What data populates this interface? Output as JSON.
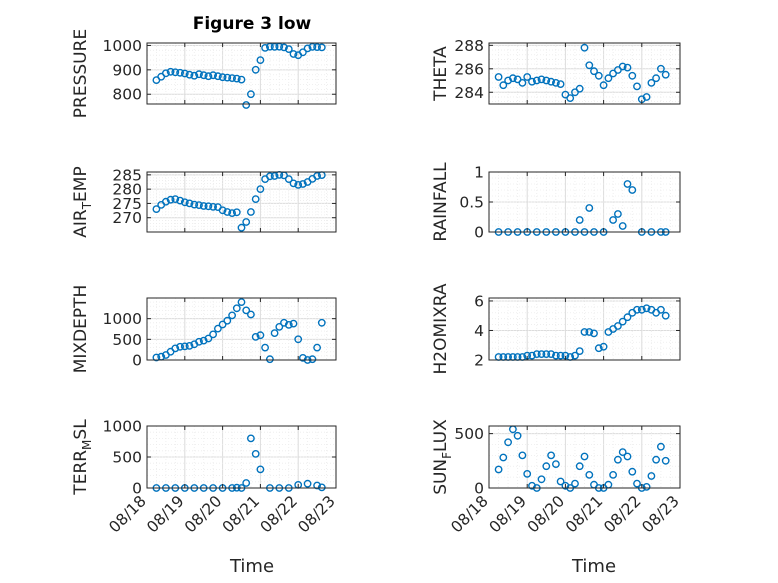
{
  "figure": {
    "title": "Figure 3 low",
    "xlabel_left": "Time",
    "xlabel_right": "Time",
    "marker_color": "#0072BD",
    "grid": true,
    "marker": "open-circle"
  },
  "chart_data": [
    {
      "type": "scatter",
      "ylabel": "PRESSURE",
      "xlim": [
        "08/18",
        "08/23"
      ],
      "ylim": [
        760,
        1010
      ],
      "yticks": [
        800,
        900,
        1000
      ],
      "x": [
        "08/18 06:00",
        "08/18 09:00",
        "08/18 12:00",
        "08/18 15:00",
        "08/18 18:00",
        "08/18 21:00",
        "08/19 00:00",
        "08/19 03:00",
        "08/19 06:00",
        "08/19 09:00",
        "08/19 12:00",
        "08/19 15:00",
        "08/19 18:00",
        "08/19 21:00",
        "08/20 00:00",
        "08/20 03:00",
        "08/20 06:00",
        "08/20 09:00",
        "08/20 12:00",
        "08/20 15:00",
        "08/20 18:00",
        "08/20 21:00",
        "08/21 00:00",
        "08/21 03:00",
        "08/21 06:00",
        "08/21 09:00",
        "08/21 12:00",
        "08/21 15:00",
        "08/21 18:00",
        "08/21 21:00",
        "08/22 00:00",
        "08/22 03:00",
        "08/22 06:00",
        "08/22 09:00",
        "08/22 12:00",
        "08/22 15:00"
      ],
      "y": [
        858,
        872,
        886,
        892,
        890,
        888,
        885,
        880,
        876,
        882,
        878,
        874,
        878,
        874,
        870,
        868,
        866,
        864,
        860,
        756,
        800,
        900,
        940,
        990,
        995,
        994,
        995,
        992,
        985,
        965,
        960,
        972,
        988,
        994,
        993,
        992
      ]
    },
    {
      "type": "scatter",
      "ylabel": "THETA",
      "xlim": [
        "08/18",
        "08/23"
      ],
      "ylim": [
        283,
        288.2
      ],
      "yticks": [
        284,
        286,
        288
      ],
      "x": [
        "08/18 06:00",
        "08/18 09:00",
        "08/18 12:00",
        "08/18 15:00",
        "08/18 18:00",
        "08/18 21:00",
        "08/19 00:00",
        "08/19 03:00",
        "08/19 06:00",
        "08/19 09:00",
        "08/19 12:00",
        "08/19 15:00",
        "08/19 18:00",
        "08/19 21:00",
        "08/20 00:00",
        "08/20 03:00",
        "08/20 06:00",
        "08/20 09:00",
        "08/20 12:00",
        "08/20 15:00",
        "08/20 18:00",
        "08/20 21:00",
        "08/21 00:00",
        "08/21 03:00",
        "08/21 06:00",
        "08/21 09:00",
        "08/21 12:00",
        "08/21 15:00",
        "08/21 18:00",
        "08/21 21:00",
        "08/22 00:00",
        "08/22 03:00",
        "08/22 06:00",
        "08/22 09:00",
        "08/22 12:00",
        "08/22 15:00"
      ],
      "y": [
        285.3,
        284.6,
        285.0,
        285.2,
        285.1,
        284.8,
        285.3,
        284.9,
        285.0,
        285.1,
        285.0,
        284.9,
        284.8,
        284.7,
        283.8,
        283.5,
        284.0,
        284.3,
        287.8,
        286.3,
        285.8,
        285.4,
        284.6,
        285.2,
        285.6,
        285.9,
        286.2,
        286.1,
        285.4,
        284.5,
        283.4,
        283.6,
        284.8,
        285.2,
        286.0,
        285.5
      ]
    },
    {
      "type": "scatter",
      "ylabel": "AIR_TEMP",
      "xlim": [
        "08/18",
        "08/23"
      ],
      "ylim": [
        265,
        286
      ],
      "yticks": [
        270,
        275,
        280,
        285
      ],
      "x": [
        "08/18 06:00",
        "08/18 09:00",
        "08/18 12:00",
        "08/18 15:00",
        "08/18 18:00",
        "08/18 21:00",
        "08/19 00:00",
        "08/19 03:00",
        "08/19 06:00",
        "08/19 09:00",
        "08/19 12:00",
        "08/19 15:00",
        "08/19 18:00",
        "08/19 21:00",
        "08/20 00:00",
        "08/20 03:00",
        "08/20 06:00",
        "08/20 09:00",
        "08/20 12:00",
        "08/20 15:00",
        "08/20 18:00",
        "08/20 21:00",
        "08/21 00:00",
        "08/21 03:00",
        "08/21 06:00",
        "08/21 09:00",
        "08/21 12:00",
        "08/21 15:00",
        "08/21 18:00",
        "08/21 21:00",
        "08/22 00:00",
        "08/22 03:00",
        "08/22 06:00",
        "08/22 09:00",
        "08/22 12:00",
        "08/22 15:00"
      ],
      "y": [
        273.0,
        274.5,
        275.6,
        276.3,
        276.5,
        276.0,
        275.4,
        275.0,
        274.6,
        274.4,
        274.1,
        274.0,
        273.8,
        273.7,
        272.6,
        272.0,
        271.6,
        271.9,
        266.5,
        268.5,
        272.0,
        276.5,
        280.0,
        283.5,
        284.5,
        284.6,
        285.0,
        284.8,
        283.5,
        282.0,
        281.5,
        281.8,
        282.5,
        283.6,
        284.6,
        284.9
      ]
    },
    {
      "type": "scatter",
      "ylabel": "RAINFALL",
      "xlim": [
        "08/18",
        "08/23"
      ],
      "ylim": [
        0,
        1
      ],
      "yticks": [
        0,
        0.5,
        1
      ],
      "x": [
        "08/18 06:00",
        "08/18 12:00",
        "08/18 18:00",
        "08/19 00:00",
        "08/19 06:00",
        "08/19 12:00",
        "08/19 18:00",
        "08/20 00:00",
        "08/20 06:00",
        "08/20 09:00",
        "08/20 12:00",
        "08/20 15:00",
        "08/20 18:00",
        "08/21 00:00",
        "08/21 06:00",
        "08/21 09:00",
        "08/21 12:00",
        "08/21 15:00",
        "08/21 18:00",
        "08/22 00:00",
        "08/22 06:00",
        "08/22 12:00",
        "08/22 15:00"
      ],
      "y": [
        0,
        0,
        0,
        0,
        0,
        0,
        0,
        0,
        0,
        0.2,
        0,
        0.4,
        0,
        0,
        0.2,
        0.3,
        0.1,
        0.8,
        0.7,
        0,
        0,
        0,
        0
      ]
    },
    {
      "type": "scatter",
      "ylabel": "MIXDEPTH",
      "xlim": [
        "08/18",
        "08/23"
      ],
      "ylim": [
        0,
        1500
      ],
      "yticks": [
        0,
        500,
        1000
      ],
      "x": [
        "08/18 06:00",
        "08/18 09:00",
        "08/18 12:00",
        "08/18 15:00",
        "08/18 18:00",
        "08/18 21:00",
        "08/19 00:00",
        "08/19 03:00",
        "08/19 06:00",
        "08/19 09:00",
        "08/19 12:00",
        "08/19 15:00",
        "08/19 18:00",
        "08/19 21:00",
        "08/20 00:00",
        "08/20 03:00",
        "08/20 06:00",
        "08/20 09:00",
        "08/20 12:00",
        "08/20 15:00",
        "08/20 18:00",
        "08/20 21:00",
        "08/21 00:00",
        "08/21 03:00",
        "08/21 06:00",
        "08/21 09:00",
        "08/21 12:00",
        "08/21 15:00",
        "08/21 18:00",
        "08/21 21:00",
        "08/22 00:00",
        "08/22 03:00",
        "08/22 06:00",
        "08/22 09:00",
        "08/22 12:00",
        "08/22 15:00"
      ],
      "y": [
        60,
        80,
        120,
        200,
        280,
        320,
        330,
        340,
        380,
        440,
        470,
        520,
        620,
        760,
        860,
        950,
        1080,
        1250,
        1400,
        1200,
        1100,
        560,
        600,
        300,
        20,
        650,
        800,
        900,
        850,
        880,
        500,
        50,
        0,
        20,
        300,
        900
      ]
    },
    {
      "type": "scatter",
      "ylabel": "H2OMIXRA",
      "xlim": [
        "08/18",
        "08/23"
      ],
      "ylim": [
        2,
        6.2
      ],
      "yticks": [
        2,
        4,
        6
      ],
      "x": [
        "08/18 06:00",
        "08/18 09:00",
        "08/18 12:00",
        "08/18 15:00",
        "08/18 18:00",
        "08/18 21:00",
        "08/19 00:00",
        "08/19 03:00",
        "08/19 06:00",
        "08/19 09:00",
        "08/19 12:00",
        "08/19 15:00",
        "08/19 18:00",
        "08/19 21:00",
        "08/20 00:00",
        "08/20 03:00",
        "08/20 06:00",
        "08/20 09:00",
        "08/20 12:00",
        "08/20 15:00",
        "08/20 18:00",
        "08/20 21:00",
        "08/21 00:00",
        "08/21 03:00",
        "08/21 06:00",
        "08/21 09:00",
        "08/21 12:00",
        "08/21 15:00",
        "08/21 18:00",
        "08/21 21:00",
        "08/22 00:00",
        "08/22 03:00",
        "08/22 06:00",
        "08/22 09:00",
        "08/22 12:00",
        "08/22 15:00"
      ],
      "y": [
        2.2,
        2.2,
        2.2,
        2.2,
        2.2,
        2.2,
        2.3,
        2.3,
        2.4,
        2.4,
        2.4,
        2.4,
        2.3,
        2.3,
        2.3,
        2.2,
        2.3,
        2.6,
        3.9,
        3.9,
        3.8,
        2.8,
        2.9,
        3.9,
        4.1,
        4.3,
        4.6,
        4.9,
        5.2,
        5.4,
        5.4,
        5.5,
        5.4,
        5.2,
        5.4,
        5.0
      ]
    },
    {
      "type": "scatter",
      "ylabel": "TERR_MSL",
      "xlim": [
        "08/18",
        "08/23"
      ],
      "ylim": [
        0,
        1000
      ],
      "yticks": [
        0,
        500,
        1000
      ],
      "x": [
        "08/18 06:00",
        "08/18 12:00",
        "08/18 18:00",
        "08/19 00:00",
        "08/19 06:00",
        "08/19 12:00",
        "08/19 18:00",
        "08/20 00:00",
        "08/20 06:00",
        "08/20 09:00",
        "08/20 12:00",
        "08/20 15:00",
        "08/20 18:00",
        "08/20 21:00",
        "08/21 00:00",
        "08/21 06:00",
        "08/21 12:00",
        "08/21 18:00",
        "08/22 00:00",
        "08/22 06:00",
        "08/22 12:00",
        "08/22 15:00"
      ],
      "y": [
        0,
        0,
        0,
        0,
        0,
        0,
        0,
        0,
        0,
        5,
        0,
        80,
        800,
        550,
        300,
        0,
        0,
        0,
        50,
        70,
        40,
        10
      ]
    },
    {
      "type": "scatter",
      "ylabel": "SUN_FLUX",
      "xlim": [
        "08/18",
        "08/23"
      ],
      "ylim": [
        0,
        570
      ],
      "yticks": [
        0,
        500
      ],
      "x": [
        "08/18 06:00",
        "08/18 09:00",
        "08/18 12:00",
        "08/18 15:00",
        "08/18 18:00",
        "08/18 21:00",
        "08/19 00:00",
        "08/19 03:00",
        "08/19 06:00",
        "08/19 09:00",
        "08/19 12:00",
        "08/19 15:00",
        "08/19 18:00",
        "08/19 21:00",
        "08/20 00:00",
        "08/20 03:00",
        "08/20 06:00",
        "08/20 09:00",
        "08/20 12:00",
        "08/20 15:00",
        "08/20 18:00",
        "08/20 21:00",
        "08/21 00:00",
        "08/21 03:00",
        "08/21 06:00",
        "08/21 09:00",
        "08/21 12:00",
        "08/21 15:00",
        "08/21 18:00",
        "08/21 21:00",
        "08/22 00:00",
        "08/22 03:00",
        "08/22 06:00",
        "08/22 09:00",
        "08/22 12:00",
        "08/22 15:00"
      ],
      "y": [
        170,
        280,
        420,
        540,
        480,
        300,
        130,
        20,
        0,
        80,
        200,
        300,
        220,
        60,
        20,
        0,
        40,
        200,
        290,
        120,
        30,
        0,
        0,
        30,
        120,
        260,
        330,
        290,
        150,
        40,
        0,
        10,
        110,
        260,
        380,
        250
      ]
    }
  ],
  "xticks": [
    "08/18",
    "08/19",
    "08/20",
    "08/21",
    "08/22",
    "08/23"
  ]
}
